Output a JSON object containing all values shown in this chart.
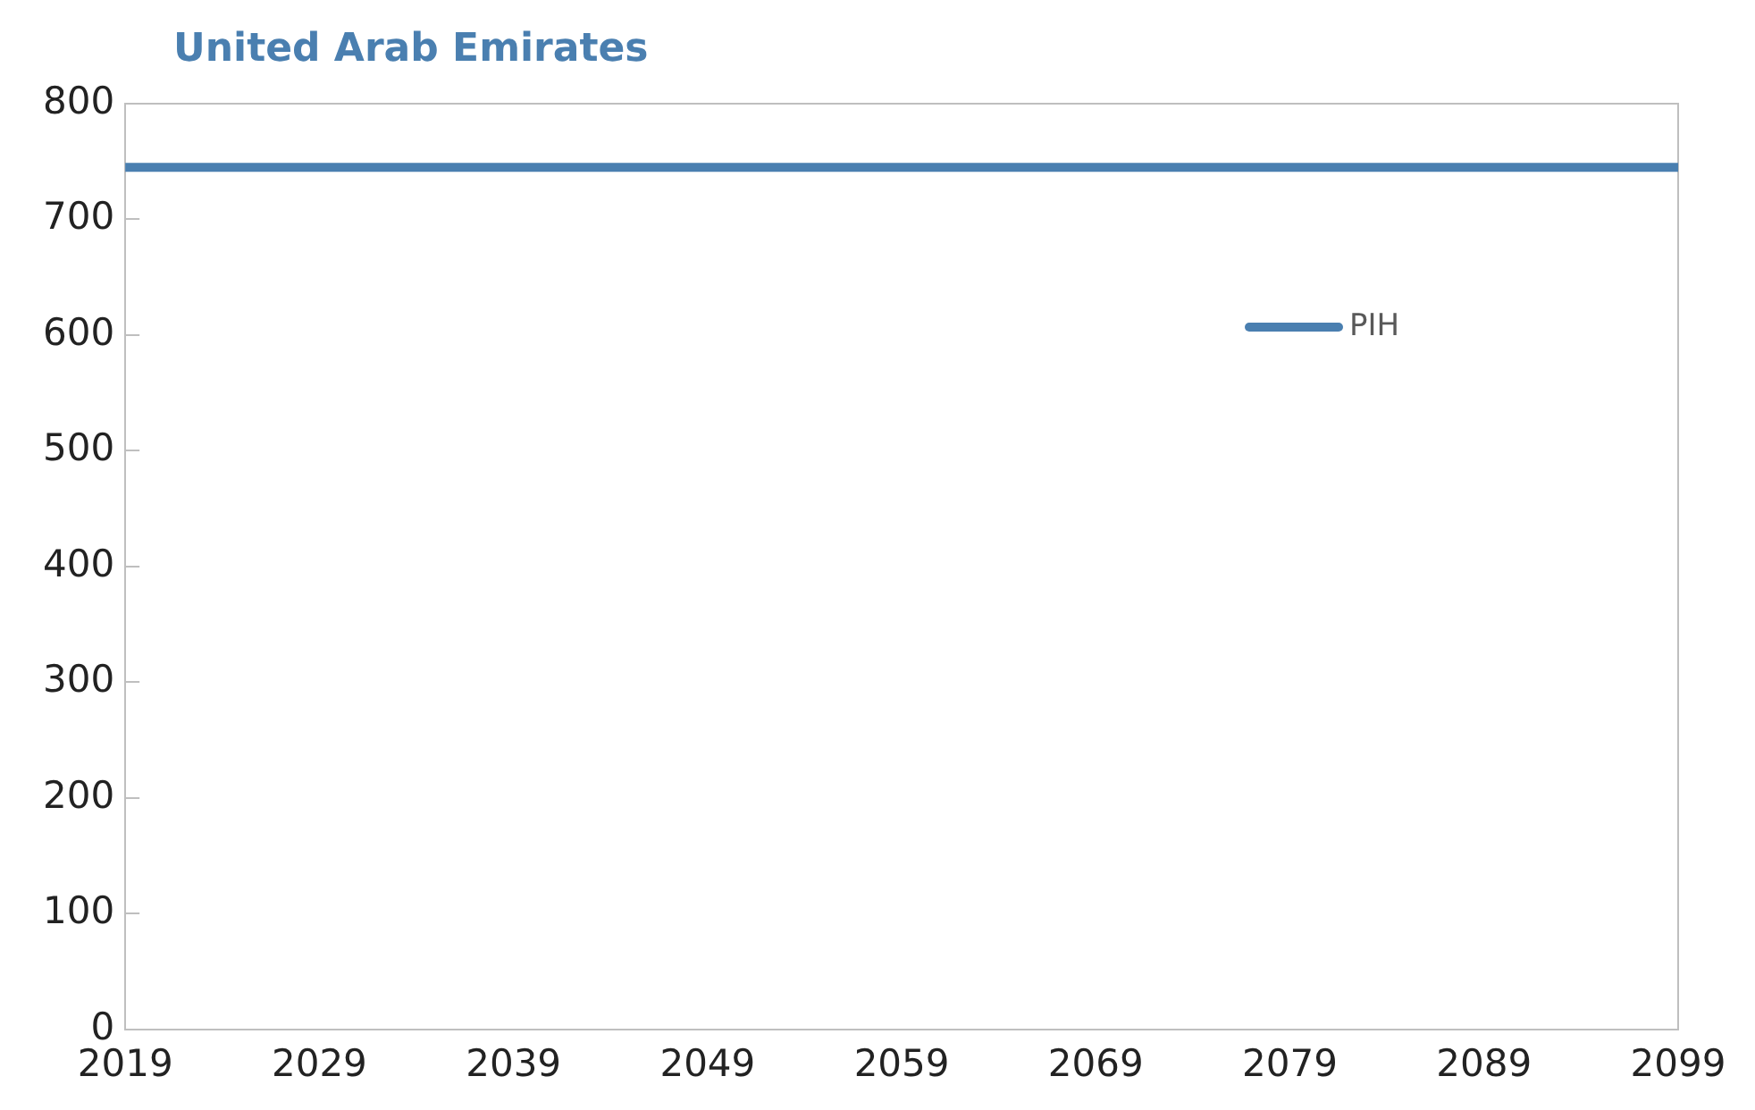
{
  "chart_data": {
    "type": "line",
    "title": "United Arab Emirates",
    "x": [
      2019,
      2099
    ],
    "series": [
      {
        "name": "PIH",
        "color": "#4a7fb0",
        "values": [
          745,
          745
        ]
      }
    ],
    "xlim": [
      2019,
      2099
    ],
    "xticks": [
      2019,
      2029,
      2039,
      2049,
      2059,
      2069,
      2079,
      2089,
      2099
    ],
    "ylim": [
      0,
      800
    ],
    "yticks": [
      0,
      100,
      200,
      300,
      400,
      500,
      600,
      700,
      800
    ],
    "grid": false,
    "legend": "top right",
    "marker": "none",
    "line_style": "solid"
  }
}
